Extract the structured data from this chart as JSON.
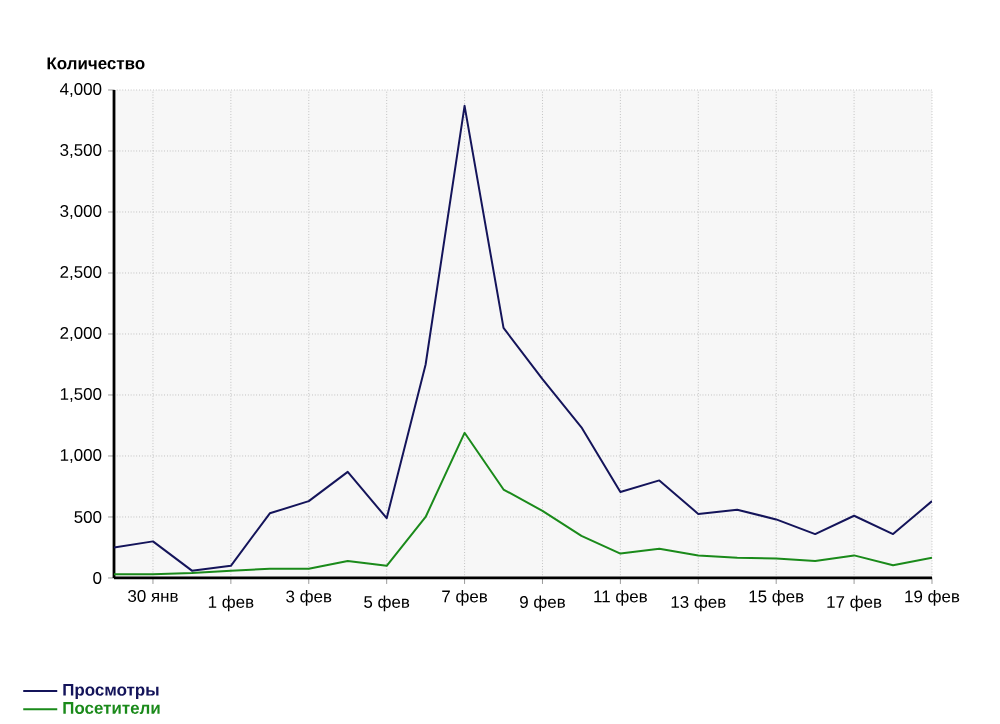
{
  "chart_data": {
    "type": "line",
    "ylabel": "Количество",
    "categories": [
      null,
      "30 янв",
      null,
      "1 фев",
      null,
      "3 фев",
      null,
      "5 фев",
      null,
      "7 фев",
      null,
      "9 фев",
      null,
      "11 фев",
      null,
      "13 фев",
      null,
      "15 фев",
      null,
      "17 фев",
      null,
      "19 фев"
    ],
    "series": [
      {
        "name": "Просмотры",
        "color": "#14145a",
        "values": [
          250,
          300,
          60,
          100,
          530,
          630,
          870,
          490,
          1750,
          3870,
          2050,
          1630,
          1235,
          705,
          800,
          525,
          560,
          480,
          360,
          510,
          360,
          630
        ]
      },
      {
        "name": "Посетители",
        "color": "#1a8a1a",
        "values": [
          30,
          30,
          40,
          60,
          75,
          75,
          140,
          100,
          500,
          1190,
          725,
          550,
          345,
          200,
          240,
          185,
          165,
          160,
          140,
          185,
          105,
          165
        ]
      }
    ],
    "ylim": [
      0,
      4000
    ],
    "yticks": [
      0,
      500,
      {
        "value": 1000,
        "label": "1,000"
      },
      {
        "value": 1500,
        "label": "1,500"
      },
      {
        "value": 2000,
        "label": "2,000"
      },
      {
        "value": 2500,
        "label": "2,500"
      },
      {
        "value": 3000,
        "label": "3,000"
      },
      {
        "value": 3500,
        "label": "3,500"
      },
      {
        "value": 4000,
        "label": "4,000"
      }
    ],
    "grid": true,
    "legend": "bottom left",
    "marker": "none",
    "line_style": "solid"
  }
}
